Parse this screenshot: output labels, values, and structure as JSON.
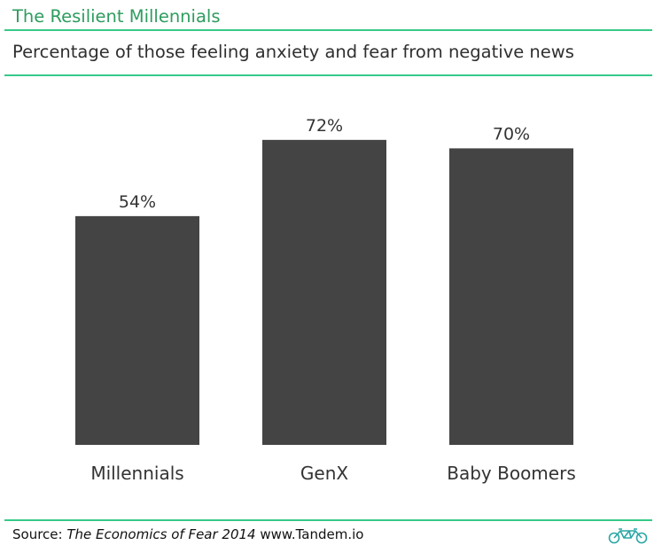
{
  "header": {
    "title": "The Resilient Millennials",
    "subtitle": "Percentage of those feeling anxiety and fear from negative news"
  },
  "chart_data": {
    "type": "bar",
    "title": "Percentage of those feeling anxiety and fear from negative news",
    "categories": [
      "Millennials",
      "GenX",
      "Baby Boomers"
    ],
    "values": [
      54,
      72,
      70
    ],
    "value_labels": [
      "54%",
      "72%",
      "70%"
    ],
    "ylim": [
      0,
      100
    ],
    "grid": false,
    "legend": "none",
    "bar_color": "#444444"
  },
  "footer": {
    "prefix": "Source:",
    "work_title": "The Economics of Fear 2014",
    "url": "www.Tandem.io"
  },
  "colors": {
    "accent": "#37c988",
    "title_green": "#2e9c5e",
    "bar": "#444444"
  },
  "icons": {
    "logo": "tandem-bicycle-icon"
  }
}
